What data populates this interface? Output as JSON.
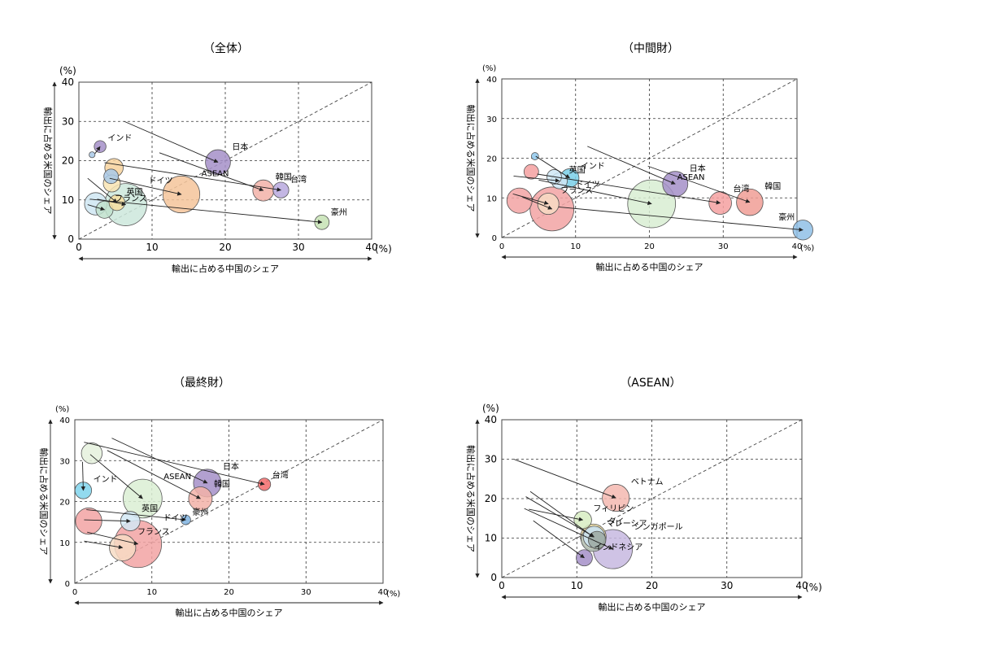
{
  "chart_data": [
    {
      "type": "bubble-arrow",
      "title": "（全体）",
      "xlabel": "輸出に占める中国のシェア",
      "ylabel": "輸出に占める米国のシェア",
      "x_unit": "(%)",
      "y_unit": "(%)",
      "xlim": [
        0,
        40
      ],
      "ylim": [
        0,
        40
      ],
      "ticks": [
        "0",
        "10",
        "20",
        "30",
        "40"
      ],
      "grid": true,
      "diagonal": true,
      "series": [
        {
          "name": "日本",
          "from": [
            6.2,
            30
          ],
          "to": [
            19,
            19.6
          ],
          "r": 1.9,
          "color": "#a48fc8"
        },
        {
          "name": "韓国",
          "from": [
            11,
            22
          ],
          "to": [
            25.2,
            12.4
          ],
          "r": 1.6,
          "color": "#f2b2a8"
        },
        {
          "name": "台湾",
          "from": [
            3.5,
            19.5
          ],
          "to": [
            27.6,
            12.5
          ],
          "r": 1.2,
          "color": "#b9a9de"
        },
        {
          "name": "ASEAN",
          "from": [
            4.2,
            15.5
          ],
          "to": [
            14,
            11.4
          ],
          "r": 2.8,
          "color": "#f5c49a"
        },
        {
          "name": "インド",
          "from": [
            2.2,
            21.8
          ],
          "to": [
            2.9,
            23.6
          ],
          "r": 0.9,
          "color": "#a48fc8"
        },
        {
          "name": "豪州",
          "from": [
            1.5,
            10.2
          ],
          "to": [
            33.2,
            4.3
          ],
          "r": 1.1,
          "color": "#c6e2b4"
        },
        {
          "name": "英国",
          "from": [
            1.2,
            15.5
          ],
          "to": [
            5.2,
            9.3
          ],
          "r": 1.2,
          "color": "#f6dfa0"
        },
        {
          "name": "フランス",
          "from": [
            1.2,
            8.8
          ],
          "to": [
            3.5,
            7.5
          ],
          "r": 1.3,
          "color": "#bfe1cc"
        },
        {
          "name": "ドイツ",
          "from": [
            2.5,
            10.2
          ],
          "to": [
            6.4,
            8.8
          ],
          "r": 3.2,
          "color": "#cce8dc"
        },
        {
          "name": "",
          "from": [
            0,
            0
          ],
          "to": [
            2.3,
            9
          ],
          "r": 1.7,
          "color": "#cfe6f2"
        },
        {
          "name": "",
          "from": [
            0,
            0
          ],
          "to": [
            4.8,
            18.2
          ],
          "r": 1.4,
          "color": "#f7d29c"
        },
        {
          "name": "",
          "from": [
            0,
            0
          ],
          "to": [
            4.5,
            14.2
          ],
          "r": 1.3,
          "color": "#f8e4b3"
        },
        {
          "name": "",
          "from": [
            0,
            0
          ],
          "to": [
            4.4,
            16
          ],
          "r": 1.1,
          "color": "#a9c9e8"
        },
        {
          "name": "",
          "from": [
            0,
            0
          ],
          "to": [
            1.8,
            21.5
          ],
          "r": 0.45,
          "color": "#a9c9e8"
        }
      ]
    },
    {
      "type": "bubble-arrow",
      "title": "（中間財）",
      "xlabel": "輸出に占める中国のシェア",
      "ylabel": "輸出に占める米国のシェア",
      "x_unit": "(%)",
      "y_unit": "(%)",
      "xlim": [
        0,
        40
      ],
      "ylim": [
        0,
        40
      ],
      "ticks": [
        "0",
        "10",
        "20",
        "30",
        "40"
      ],
      "grid": true,
      "diagonal": true,
      "series": [
        {
          "name": "日本",
          "from": [
            11.6,
            23
          ],
          "to": [
            23.5,
            13.5
          ],
          "r": 1.9,
          "color": "#a48fc8"
        },
        {
          "name": "韓国",
          "from": [
            19.8,
            18
          ],
          "to": [
            33.6,
            8.9
          ],
          "r": 2.0,
          "color": "#f09e95"
        },
        {
          "name": "台湾",
          "from": [
            4.8,
            16
          ],
          "to": [
            29.6,
            8.7
          ],
          "r": 1.7,
          "color": "#f4a0a0"
        },
        {
          "name": "ASEAN",
          "from": [
            5,
            14.5
          ],
          "to": [
            20.3,
            8.5
          ],
          "r": 3.6,
          "color": "#d8edd2"
        },
        {
          "name": "インド",
          "from": [
            4.6,
            20.5
          ],
          "to": [
            9.2,
            15
          ],
          "r": 1.4,
          "color": "#79cfe8"
        },
        {
          "name": "豪州",
          "from": [
            7.7,
            7.7
          ],
          "to": [
            40.8,
            1.9
          ],
          "r": 1.5,
          "color": "#8fbfe6"
        },
        {
          "name": "英国",
          "from": [
            1.6,
            15.5
          ],
          "to": [
            7.8,
            14.3
          ],
          "r": 1.2,
          "color": "#cfe8f6"
        },
        {
          "name": "フランス",
          "from": [
            1.5,
            11
          ],
          "to": [
            6.3,
            8.5
          ],
          "r": 1.6,
          "color": "#f7dcc4"
        },
        {
          "name": "ドイツ",
          "from": [
            2.8,
            10.2
          ],
          "to": [
            6.8,
            7.2
          ],
          "r": 3.3,
          "color": "#f2a3a3"
        },
        {
          "name": "",
          "from": [
            0,
            0
          ],
          "to": [
            2.4,
            9.3
          ],
          "r": 1.9,
          "color": "#f2a3a3"
        },
        {
          "name": "",
          "from": [
            0,
            0
          ],
          "to": [
            4,
            16.6
          ],
          "r": 1.1,
          "color": "#f4a0a0"
        },
        {
          "name": "",
          "from": [
            0,
            0
          ],
          "to": [
            7.1,
            15.3
          ],
          "r": 1.1,
          "color": "#cfe8f6"
        },
        {
          "name": "",
          "from": [
            0,
            0
          ],
          "to": [
            4.5,
            20.5
          ],
          "r": 0.55,
          "color": "#8fc8ec"
        }
      ]
    },
    {
      "type": "bubble-arrow",
      "title": "（最終財）",
      "xlabel": "輸出に占める中国のシェア",
      "ylabel": "輸出に占める米国のシェア",
      "x_unit": "(%)",
      "y_unit": "(%)",
      "xlim": [
        0,
        40
      ],
      "ylim": [
        0,
        40
      ],
      "ticks": [
        "0",
        "10",
        "20",
        "30",
        "40"
      ],
      "grid": true,
      "diagonal": true,
      "series": [
        {
          "name": "日本",
          "from": [
            4.8,
            35.5
          ],
          "to": [
            17.2,
            24.5
          ],
          "r": 2.0,
          "color": "#a48fc8"
        },
        {
          "name": "韓国",
          "from": [
            4.2,
            32.5
          ],
          "to": [
            16.3,
            20.7
          ],
          "r": 1.7,
          "color": "#f2b2a8"
        },
        {
          "name": "台湾",
          "from": [
            1.2,
            34.5
          ],
          "to": [
            24.6,
            24.2
          ],
          "r": 0.9,
          "color": "#f26b6b"
        },
        {
          "name": "ASEAN",
          "from": [
            2,
            31.5
          ],
          "to": [
            8.8,
            20.7
          ],
          "r": 2.8,
          "color": "#dbeed3"
        },
        {
          "name": "インド",
          "from": [
            1,
            29.7
          ],
          "to": [
            1.1,
            22.7
          ],
          "r": 1.2,
          "color": "#7fd3ec"
        },
        {
          "name": "豪州",
          "from": [
            1.5,
            18
          ],
          "to": [
            14.4,
            15.5
          ],
          "r": 0.7,
          "color": "#7fb3e0"
        },
        {
          "name": "英国",
          "from": [
            1.2,
            15.5
          ],
          "to": [
            7.2,
            15.2
          ],
          "r": 1.4,
          "color": "#d2e8f4"
        },
        {
          "name": "フランス",
          "from": [
            1.2,
            10.3
          ],
          "to": [
            6.2,
            8.7
          ],
          "r": 1.9,
          "color": "#f7dcc4"
        },
        {
          "name": "ドイツ",
          "from": [
            1.6,
            12.5
          ],
          "to": [
            8.2,
            9.6
          ],
          "r": 3.4,
          "color": "#f2a3a3"
        },
        {
          "name": "",
          "from": [
            0,
            0
          ],
          "to": [
            2.2,
            31.8
          ],
          "r": 1.5,
          "color": "#e5f1dd"
        },
        {
          "name": "",
          "from": [
            0,
            0
          ],
          "to": [
            1.8,
            15.2
          ],
          "r": 1.9,
          "color": "#f2a3a3"
        }
      ]
    },
    {
      "type": "bubble-arrow",
      "title": "（ASEAN）",
      "xlabel": "輸出に占める中国のシェア",
      "ylabel": "輸出に占める米国のシェア",
      "x_unit": "(%)",
      "y_unit": "(%)",
      "xlim": [
        0,
        40
      ],
      "ylim": [
        0,
        40
      ],
      "ticks": [
        "0",
        "10",
        "20",
        "30",
        "40"
      ],
      "grid": true,
      "diagonal": true,
      "series": [
        {
          "name": "ベトナム",
          "from": [
            1.6,
            30
          ],
          "to": [
            15.2,
            20.2
          ],
          "r": 2.0,
          "color": "#f4b9b0"
        },
        {
          "name": "タイ",
          "from": [
            3.8,
            21.8
          ],
          "to": [
            12.2,
            10.3
          ],
          "r": 1.9,
          "color": "#f5e4a6"
        },
        {
          "name": "マレーシア",
          "from": [
            3.2,
            20.5
          ],
          "to": [
            12.3,
            10.3
          ],
          "r": 1.6,
          "color": "#cfe6f2"
        },
        {
          "name": "フィリピン",
          "from": [
            3.6,
            17.3
          ],
          "to": [
            10.8,
            14.6
          ],
          "r": 1.3,
          "color": "#d7ecc2"
        },
        {
          "name": "インドネシア",
          "from": [
            4.2,
            14.4
          ],
          "to": [
            11,
            5
          ],
          "r": 1.2,
          "color": "#a48fc8"
        },
        {
          "name": "シンガポール",
          "from": [
            3,
            17.5
          ],
          "to": [
            14.8,
            7.2
          ],
          "r": 2.9,
          "color": "#c7b9e0"
        },
        {
          "name": "",
          "from": [
            0,
            0
          ],
          "to": [
            12.2,
            9.7
          ],
          "r": 1.8,
          "color": "#b9c5bd"
        },
        {
          "name": "",
          "from": [
            0,
            0
          ],
          "to": [
            12.7,
            9.5
          ],
          "r": 1.3,
          "color": "#9aa7a0"
        }
      ]
    }
  ]
}
